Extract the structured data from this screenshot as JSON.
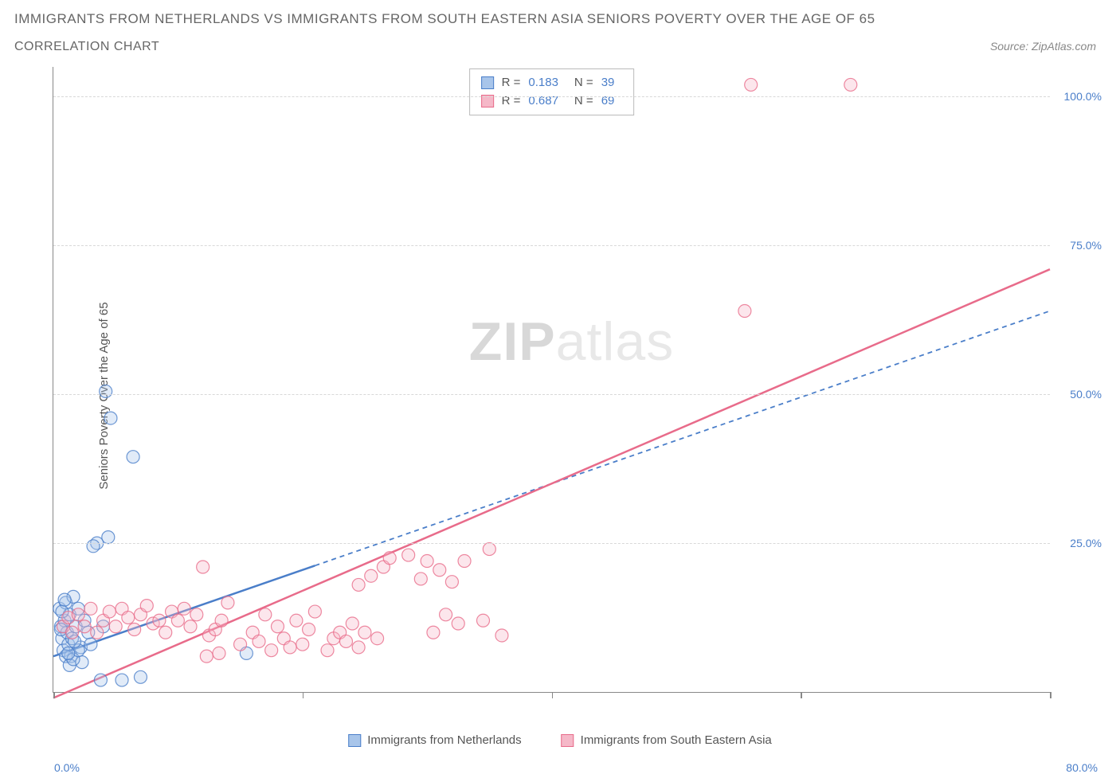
{
  "title": "IMMIGRANTS FROM NETHERLANDS VS IMMIGRANTS FROM SOUTH EASTERN ASIA SENIORS POVERTY OVER THE AGE OF 65",
  "subtitle": "CORRELATION CHART",
  "source": "Source: ZipAtlas.com",
  "y_axis_label": "Seniors Poverty Over the Age of 65",
  "watermark_bold": "ZIP",
  "watermark_light": "atlas",
  "chart": {
    "type": "scatter",
    "xlim": [
      0,
      80
    ],
    "ylim": [
      0,
      105
    ],
    "x_ticks": [
      0,
      20,
      40,
      60,
      80
    ],
    "x_tick_labels": {
      "0": "0.0%",
      "80": "80.0%"
    },
    "y_gridlines": [
      25,
      50,
      75,
      100
    ],
    "y_tick_labels": {
      "25": "25.0%",
      "50": "50.0%",
      "75": "75.0%",
      "100": "100.0%"
    },
    "background_color": "#ffffff",
    "grid_color": "#d8d8d8",
    "axis_color": "#888888",
    "marker_radius": 8,
    "marker_opacity": 0.35,
    "series": [
      {
        "name": "Immigrants from Netherlands",
        "color": "#4a7ec9",
        "fill": "#a8c5ea",
        "R": "0.183",
        "N": "39",
        "regression": {
          "x1": 0,
          "y1": 6,
          "x2": 80,
          "y2": 64,
          "solid_until_x": 21
        },
        "points": [
          [
            0.5,
            14
          ],
          [
            0.6,
            11
          ],
          [
            0.7,
            9
          ],
          [
            0.8,
            7
          ],
          [
            0.9,
            12
          ],
          [
            1.0,
            15
          ],
          [
            1.1,
            10
          ],
          [
            1.2,
            8
          ],
          [
            1.3,
            13
          ],
          [
            1.4,
            6
          ],
          [
            1.5,
            9
          ],
          [
            1.6,
            16
          ],
          [
            1.8,
            11
          ],
          [
            2.0,
            14
          ],
          [
            2.2,
            7.5
          ],
          [
            2.3,
            5
          ],
          [
            2.5,
            12
          ],
          [
            2.8,
            10
          ],
          [
            3.0,
            8
          ],
          [
            1.0,
            6
          ],
          [
            1.3,
            4.5
          ],
          [
            1.6,
            5.5
          ],
          [
            2.0,
            7
          ],
          [
            0.7,
            13.5
          ],
          [
            0.9,
            15.5
          ],
          [
            3.5,
            25
          ],
          [
            4.4,
            26
          ],
          [
            3.2,
            24.5
          ],
          [
            4.0,
            11
          ],
          [
            5.5,
            2
          ],
          [
            3.8,
            2
          ],
          [
            7.0,
            2.5
          ],
          [
            4.6,
            46
          ],
          [
            4.2,
            50.5
          ],
          [
            6.4,
            39.5
          ],
          [
            1.2,
            6.5
          ],
          [
            1.7,
            8.5
          ],
          [
            0.6,
            10.5
          ],
          [
            15.5,
            6.5
          ]
        ]
      },
      {
        "name": "Immigrants from South Eastern Asia",
        "color": "#e86b8a",
        "fill": "#f5b8c8",
        "R": "0.687",
        "N": "69",
        "regression": {
          "x1": 0,
          "y1": -1,
          "x2": 80,
          "y2": 71,
          "solid_until_x": 80
        },
        "points": [
          [
            0.8,
            11
          ],
          [
            1.2,
            12.5
          ],
          [
            1.5,
            10
          ],
          [
            2.0,
            13
          ],
          [
            2.5,
            11
          ],
          [
            3.0,
            14
          ],
          [
            3.5,
            10
          ],
          [
            4.0,
            12
          ],
          [
            4.5,
            13.5
          ],
          [
            5.0,
            11
          ],
          [
            5.5,
            14
          ],
          [
            6.0,
            12.5
          ],
          [
            6.5,
            10.5
          ],
          [
            7.0,
            13
          ],
          [
            7.5,
            14.5
          ],
          [
            8.0,
            11.5
          ],
          [
            8.5,
            12
          ],
          [
            9.0,
            10
          ],
          [
            9.5,
            13.5
          ],
          [
            10.0,
            12
          ],
          [
            10.5,
            14
          ],
          [
            11.0,
            11
          ],
          [
            11.5,
            13
          ],
          [
            12.0,
            21
          ],
          [
            12.5,
            9.5
          ],
          [
            13.0,
            10.5
          ],
          [
            13.5,
            12
          ],
          [
            14.0,
            15
          ],
          [
            15.0,
            8
          ],
          [
            16.0,
            10
          ],
          [
            16.5,
            8.5
          ],
          [
            17.0,
            13
          ],
          [
            17.5,
            7
          ],
          [
            18.0,
            11
          ],
          [
            18.5,
            9
          ],
          [
            19.0,
            7.5
          ],
          [
            19.5,
            12
          ],
          [
            20.0,
            8
          ],
          [
            20.5,
            10.5
          ],
          [
            21.0,
            13.5
          ],
          [
            22.0,
            7
          ],
          [
            22.5,
            9
          ],
          [
            23.0,
            10
          ],
          [
            23.5,
            8.5
          ],
          [
            24.0,
            11.5
          ],
          [
            24.5,
            7.5
          ],
          [
            25.0,
            10
          ],
          [
            26.0,
            9
          ],
          [
            24.5,
            18
          ],
          [
            25.5,
            19.5
          ],
          [
            26.5,
            21
          ],
          [
            27.0,
            22.5
          ],
          [
            28.5,
            23
          ],
          [
            30.0,
            22
          ],
          [
            29.5,
            19
          ],
          [
            31,
            20.5
          ],
          [
            32.0,
            18.5
          ],
          [
            33.0,
            22
          ],
          [
            30.5,
            10
          ],
          [
            31.5,
            13
          ],
          [
            32.5,
            11.5
          ],
          [
            34.5,
            12
          ],
          [
            35.0,
            24
          ],
          [
            36,
            9.5
          ],
          [
            12.3,
            6
          ],
          [
            13.3,
            6.5
          ],
          [
            55.5,
            64
          ],
          [
            56.0,
            102
          ],
          [
            64.0,
            102
          ]
        ]
      }
    ]
  },
  "bottom_legend": [
    {
      "label": "Immigrants from Netherlands",
      "fill": "#a8c5ea",
      "border": "#4a7ec9"
    },
    {
      "label": "Immigrants from South Eastern Asia",
      "fill": "#f5b8c8",
      "border": "#e86b8a"
    }
  ],
  "stats_labels": {
    "R": "R =",
    "N": "N ="
  }
}
